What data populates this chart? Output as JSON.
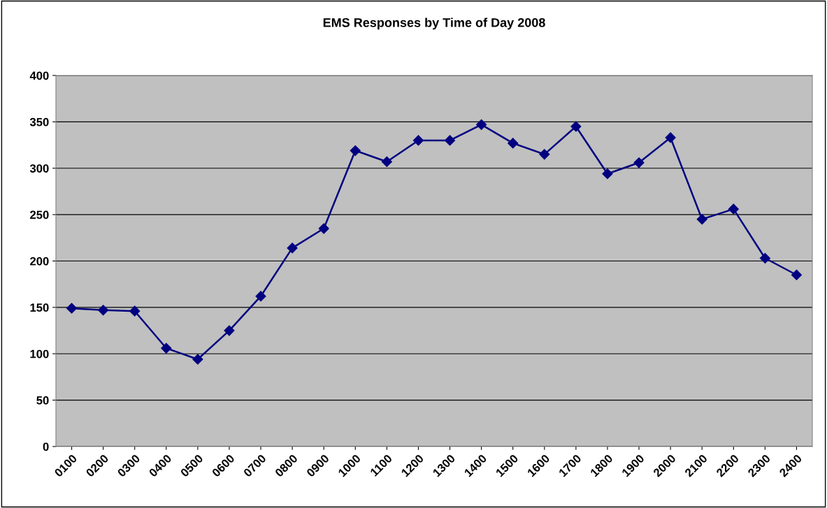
{
  "chart_data": {
    "type": "line",
    "title": "EMS Responses by Time of Day 2008",
    "categories": [
      "0100",
      "0200",
      "0300",
      "0400",
      "0500",
      "0600",
      "0700",
      "0800",
      "0900",
      "1000",
      "1100",
      "1200",
      "1300",
      "1400",
      "1500",
      "1600",
      "1700",
      "1800",
      "1900",
      "2000",
      "2100",
      "2200",
      "2300",
      "2400"
    ],
    "series": [
      {
        "color": "#000080",
        "values": [
          149,
          147,
          146,
          106,
          94,
          125,
          162,
          214,
          235,
          319,
          307,
          330,
          330,
          347,
          327,
          315,
          345,
          294,
          306,
          333,
          245,
          256,
          203,
          185
        ]
      }
    ],
    "ylim": [
      0,
      400
    ],
    "yticks": [
      0,
      50,
      100,
      150,
      200,
      250,
      300,
      350,
      400
    ],
    "grid": "y",
    "marker": "diamond",
    "line_style": "solid"
  }
}
